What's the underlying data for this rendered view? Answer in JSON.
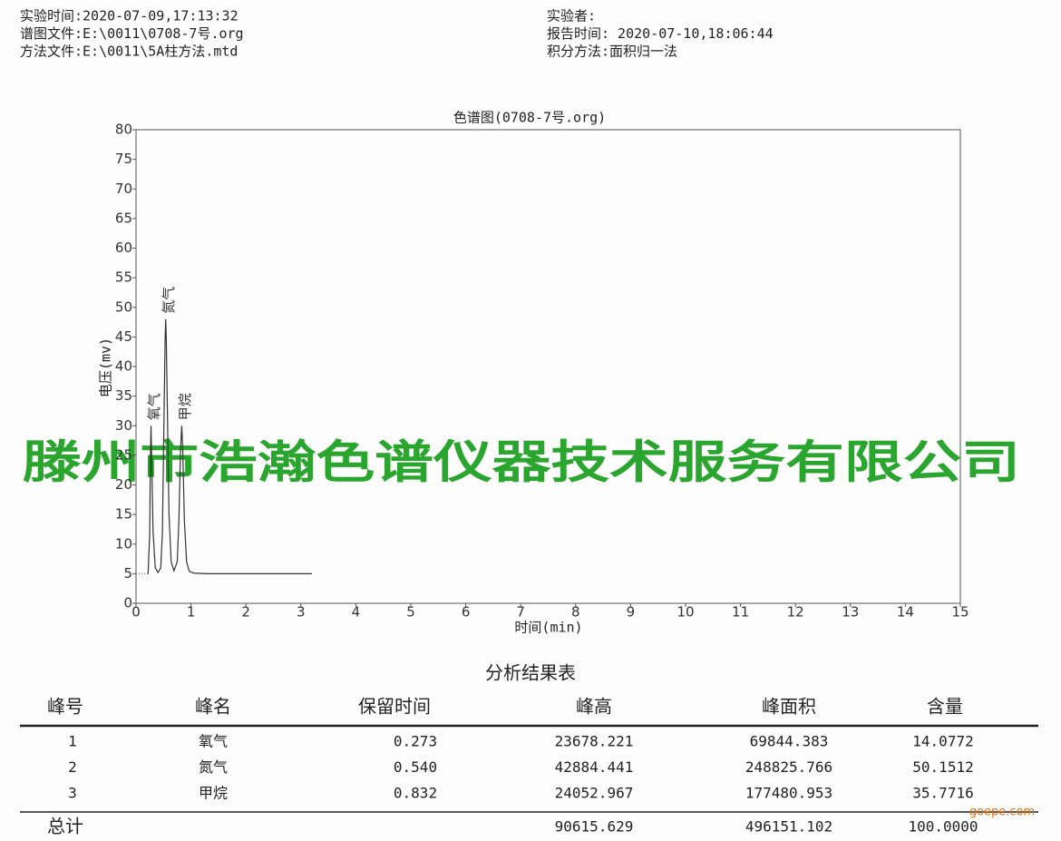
{
  "header": {
    "left": [
      "实验时间:2020-07-09,17:13:32",
      "谱图文件:E:\\0011\\0708-7号.org",
      "方法文件:E:\\0011\\5A柱方法.mtd"
    ],
    "right": [
      "实验者:",
      "报告时间: 2020-07-10,18:06:44",
      "积分方法:面积归一法"
    ]
  },
  "chart_data": {
    "type": "line",
    "title": "色谱图(0708-7号.org)",
    "x_label": "时间(min)",
    "y_label": "电压(mv)",
    "x": [
      0.22,
      0.25,
      0.26,
      0.273,
      0.29,
      0.31,
      0.35,
      0.4,
      0.45,
      0.48,
      0.51,
      0.53,
      0.54,
      0.55,
      0.57,
      0.6,
      0.64,
      0.69,
      0.75,
      0.78,
      0.81,
      0.832,
      0.85,
      0.88,
      0.92,
      0.97,
      1.05,
      1.3,
      3.2
    ],
    "series": [
      {
        "color": "#333333",
        "values": [
          5,
          12,
          24,
          30,
          22,
          12,
          6,
          5.2,
          6,
          12,
          32,
          45,
          48,
          45,
          33,
          15,
          7,
          5.5,
          7,
          14,
          26,
          30,
          26,
          14,
          7,
          5.4,
          5.1,
          5,
          5
        ]
      }
    ],
    "annotations": [
      {
        "text": "氧气",
        "x": 0.273
      },
      {
        "text": "氮气",
        "x": 0.54
      },
      {
        "text": "甲烷",
        "x": 0.832
      }
    ],
    "xlim": [
      0,
      15
    ],
    "ylim": [
      0,
      80
    ],
    "xticks": [
      0,
      1,
      2,
      3,
      4,
      5,
      6,
      7,
      8,
      9,
      10,
      11,
      12,
      13,
      14,
      15
    ],
    "yticks": [
      0,
      5,
      10,
      15,
      20,
      25,
      30,
      35,
      40,
      45,
      50,
      55,
      60,
      65,
      70,
      75,
      80
    ]
  },
  "table": {
    "title": "分析结果表",
    "columns": [
      "峰号",
      "峰名",
      "保留时间",
      "峰高",
      "峰面积",
      "含量"
    ],
    "rows": [
      [
        "1",
        "氧气",
        "0.273",
        "23678.221",
        "69844.383",
        "14.0772"
      ],
      [
        "2",
        "氮气",
        "0.540",
        "42884.441",
        "248825.766",
        "50.1512"
      ],
      [
        "3",
        "甲烷",
        "0.832",
        "24052.967",
        "177480.953",
        "35.7716"
      ]
    ],
    "total": {
      "label": "总计",
      "height": "90615.629",
      "area": "496151.102",
      "content": "100.0000"
    }
  },
  "watermark": "滕州市浩瀚色谱仪器技术服务有限公司",
  "site": "goepe.com"
}
